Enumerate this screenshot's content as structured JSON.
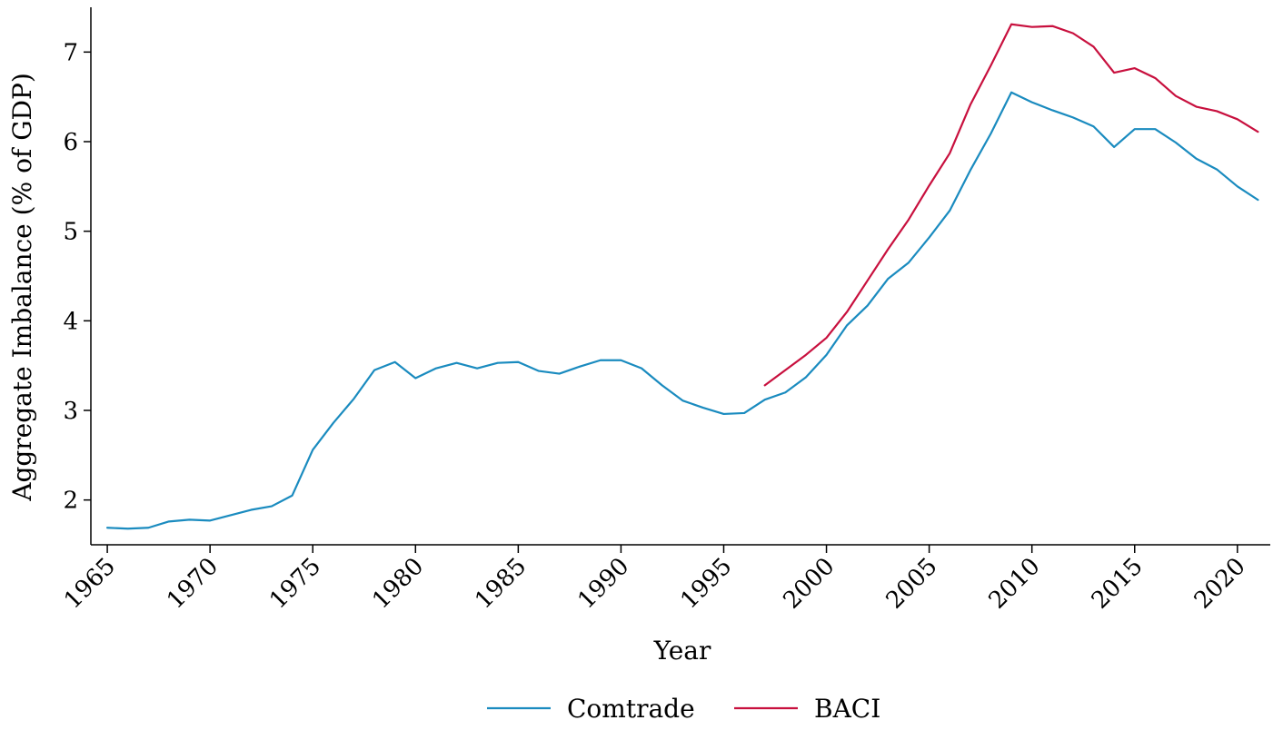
{
  "chart_data": {
    "type": "line",
    "title": "",
    "xlabel": "Year",
    "ylabel": "Aggregate Imbalance (% of GDP)",
    "xlim": [
      1964.2,
      2021.6
    ],
    "ylim": [
      1.5,
      7.5
    ],
    "x_ticks": [
      1965,
      1970,
      1975,
      1980,
      1985,
      1990,
      1995,
      2000,
      2005,
      2010,
      2015,
      2020
    ],
    "x_tick_labels": [
      "1965",
      "1970",
      "1975",
      "1980",
      "1985",
      "1990",
      "1995",
      "2000",
      "2005",
      "2010",
      "2015",
      "2020"
    ],
    "y_ticks": [
      2,
      3,
      4,
      5,
      6,
      7
    ],
    "y_tick_labels": [
      "2",
      "3",
      "4",
      "5",
      "6",
      "7"
    ],
    "grid": false,
    "legend_position": "bottom-center",
    "series": [
      {
        "name": "Comtrade",
        "color": "#1a8bbf",
        "x": [
          1965,
          1966,
          1967,
          1968,
          1969,
          1970,
          1971,
          1972,
          1973,
          1974,
          1975,
          1976,
          1977,
          1978,
          1979,
          1980,
          1981,
          1982,
          1983,
          1984,
          1985,
          1986,
          1987,
          1988,
          1989,
          1990,
          1991,
          1992,
          1993,
          1994,
          1995,
          1996,
          1997,
          1998,
          1999,
          2000,
          2001,
          2002,
          2003,
          2004,
          2005,
          2006,
          2007,
          2008,
          2009,
          2010,
          2011,
          2012,
          2013,
          2014,
          2015,
          2016,
          2017,
          2018,
          2019,
          2020,
          2021
        ],
        "values": [
          1.69,
          1.68,
          1.69,
          1.76,
          1.78,
          1.77,
          1.83,
          1.89,
          1.93,
          2.05,
          2.56,
          2.86,
          3.13,
          3.45,
          3.54,
          3.36,
          3.47,
          3.53,
          3.47,
          3.53,
          3.54,
          3.44,
          3.41,
          3.49,
          3.56,
          3.56,
          3.47,
          3.28,
          3.11,
          3.03,
          2.96,
          2.97,
          3.12,
          3.2,
          3.37,
          3.62,
          3.95,
          4.17,
          4.47,
          4.65,
          4.93,
          5.23,
          5.68,
          6.09,
          6.55,
          6.44,
          6.35,
          6.27,
          6.17,
          5.94,
          6.14,
          6.14,
          5.99,
          5.81,
          5.69,
          5.5,
          5.35
        ]
      },
      {
        "name": "BACI",
        "color": "#c8103e",
        "x": [
          1997,
          1998,
          1999,
          2000,
          2001,
          2002,
          2003,
          2004,
          2005,
          2006,
          2007,
          2008,
          2009,
          2010,
          2011,
          2012,
          2013,
          2014,
          2015,
          2016,
          2017,
          2018,
          2019,
          2020,
          2021
        ],
        "values": [
          3.28,
          3.45,
          3.62,
          3.81,
          4.1,
          4.45,
          4.8,
          5.13,
          5.51,
          5.87,
          6.41,
          6.85,
          7.31,
          7.28,
          7.29,
          7.21,
          7.06,
          6.77,
          6.82,
          6.71,
          6.51,
          6.39,
          6.34,
          6.25,
          6.11
        ]
      }
    ]
  }
}
